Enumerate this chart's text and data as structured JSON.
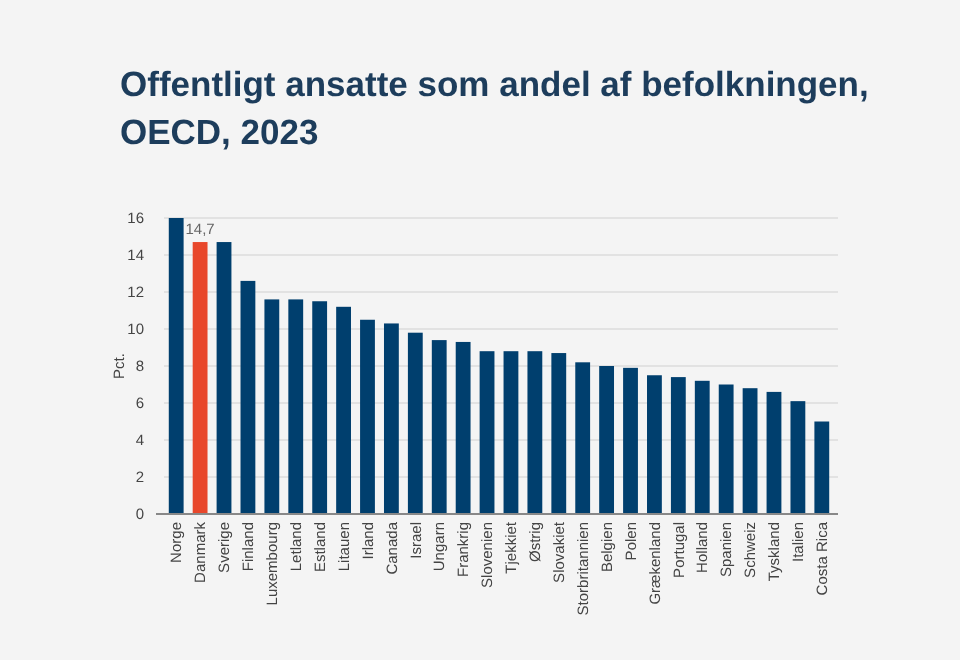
{
  "chart_data": {
    "type": "bar",
    "title": "Offentligt ansatte som andel af befolkningen, OECD, 2023",
    "ylabel": "Pct.",
    "categories": [
      "Norge",
      "Danmark",
      "Sverige",
      "Finland",
      "Luxembourg",
      "Letland",
      "Estland",
      "Litauen",
      "Irland",
      "Canada",
      "Israel",
      "Ungarn",
      "Frankrig",
      "Slovenien",
      "Tjekkiet",
      "Østrig",
      "Slovakiet",
      "Storbritannien",
      "Belgien",
      "Polen",
      "Grækenland",
      "Portugal",
      "Holland",
      "Spanien",
      "Schweiz",
      "Tyskland",
      "Italien",
      "Costa Rica"
    ],
    "values": [
      16.0,
      14.7,
      14.7,
      12.6,
      11.6,
      11.6,
      11.5,
      11.2,
      10.5,
      10.3,
      9.8,
      9.4,
      9.3,
      8.8,
      8.8,
      8.8,
      8.7,
      8.2,
      8.0,
      7.9,
      7.5,
      7.4,
      7.2,
      7.0,
      6.8,
      6.6,
      6.1,
      5.0
    ],
    "value_labels": [
      null,
      "14,7",
      null,
      null,
      null,
      null,
      null,
      null,
      null,
      null,
      null,
      null,
      null,
      null,
      null,
      null,
      null,
      null,
      null,
      null,
      null,
      null,
      null,
      null,
      null,
      null,
      null,
      null
    ],
    "colors": [
      "#003f6e",
      "#e8472b",
      "#003f6e",
      "#003f6e",
      "#003f6e",
      "#003f6e",
      "#003f6e",
      "#003f6e",
      "#003f6e",
      "#003f6e",
      "#003f6e",
      "#003f6e",
      "#003f6e",
      "#003f6e",
      "#003f6e",
      "#003f6e",
      "#003f6e",
      "#003f6e",
      "#003f6e",
      "#003f6e",
      "#003f6e",
      "#003f6e",
      "#003f6e",
      "#003f6e",
      "#003f6e",
      "#003f6e",
      "#003f6e",
      "#003f6e"
    ],
    "ylim": [
      0,
      16
    ],
    "yticks": [
      0,
      2,
      4,
      6,
      8,
      10,
      12,
      14,
      16
    ],
    "grid": "y"
  }
}
